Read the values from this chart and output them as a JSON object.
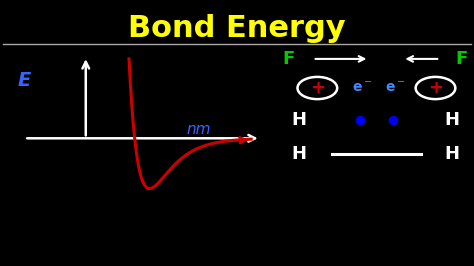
{
  "background_color": "#000000",
  "title": "Bond Energy",
  "title_color": "#FFFF00",
  "title_fontsize": 22,
  "divider_line_color": "#AAAAAA",
  "axis_color": "#FFFFFF",
  "curve_color": "#CC0000",
  "E_label_color": "#3366FF",
  "nm_label_color": "#3366FF",
  "F_label_color": "#00CC00",
  "H_label_color": "#FFFFFF",
  "electron_color": "#FFFFFF",
  "plus_color": "#CC0000",
  "dot_color": "#0000EE",
  "arrow_color": "#FFFFFF",
  "xlim": [
    0,
    10
  ],
  "ylim": [
    0,
    10
  ]
}
